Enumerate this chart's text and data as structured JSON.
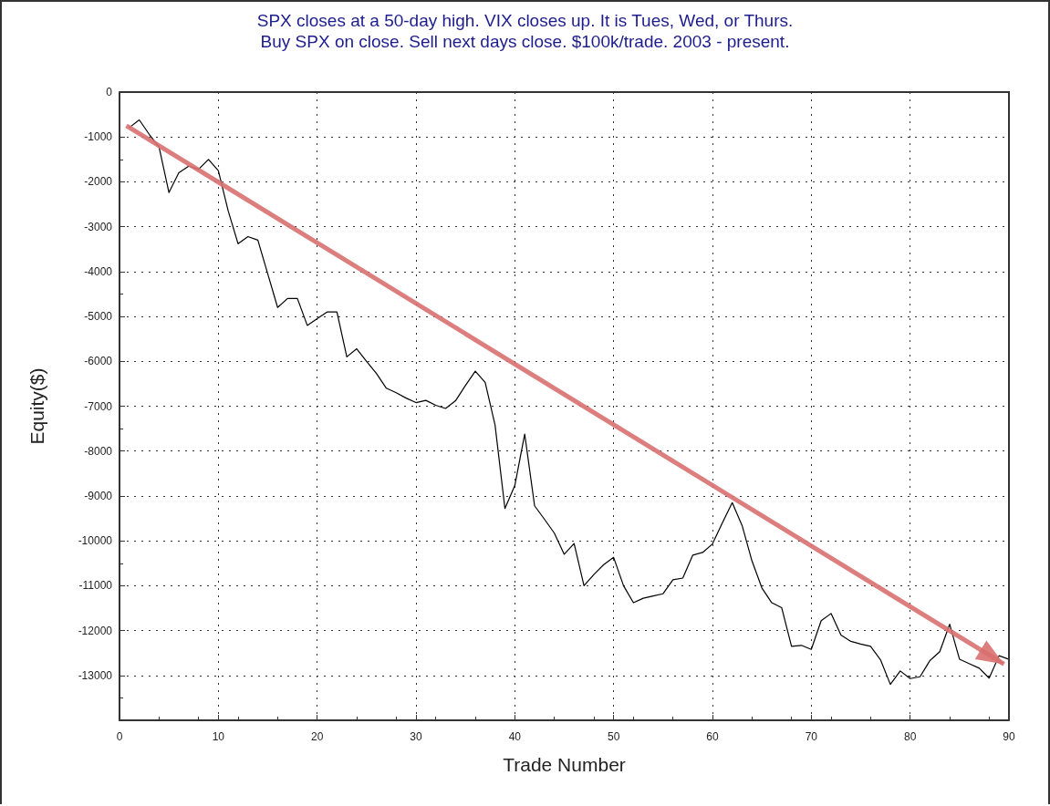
{
  "chart_data": {
    "type": "line",
    "title": "SPX closes at a 50-day high. VIX closes up. It is Tues, Wed, or Thurs.",
    "subtitle": "Buy SPX on close. Sell next days close. $100k/trade. 2003 - present.",
    "xlabel": "Trade Number",
    "ylabel": "Equity($)",
    "series": [
      {
        "color": "#000000",
        "x": [
          1,
          2,
          3,
          4,
          5,
          6,
          7,
          8,
          9,
          10,
          11,
          12,
          13,
          14,
          15,
          16,
          17,
          18,
          19,
          20,
          21,
          22,
          23,
          24,
          25,
          26,
          27,
          28,
          29,
          30,
          31,
          32,
          33,
          34,
          35,
          36,
          37,
          38,
          39,
          40,
          41,
          42,
          43,
          44,
          45,
          46,
          47,
          48,
          49,
          50,
          51,
          52,
          53,
          54,
          55,
          56,
          57,
          58,
          59,
          60,
          61,
          62,
          63,
          64,
          65,
          66,
          67,
          68,
          69,
          70,
          71,
          72,
          73,
          74,
          75,
          76,
          77,
          78,
          79,
          80,
          81,
          82,
          83,
          84,
          85,
          86,
          87,
          88,
          89,
          90
        ],
        "values": [
          -790,
          -620,
          -940,
          -1220,
          -2240,
          -1800,
          -1650,
          -1720,
          -1500,
          -1750,
          -2650,
          -3380,
          -3220,
          -3300,
          -4050,
          -4800,
          -4600,
          -4600,
          -5200,
          -5050,
          -4900,
          -4900,
          -5900,
          -5720,
          -6000,
          -6270,
          -6600,
          -6700,
          -6820,
          -6920,
          -6870,
          -6980,
          -7050,
          -6880,
          -6540,
          -6220,
          -6470,
          -7420,
          -9280,
          -8770,
          -7620,
          -9220,
          -9520,
          -9830,
          -10300,
          -10060,
          -11000,
          -10750,
          -10530,
          -10370,
          -11000,
          -11380,
          -11280,
          -11230,
          -11180,
          -10870,
          -10830,
          -10320,
          -10260,
          -10070,
          -9600,
          -9150,
          -9660,
          -10450,
          -11050,
          -11380,
          -11490,
          -12350,
          -12330,
          -12420,
          -11780,
          -11620,
          -12100,
          -12240,
          -12300,
          -12350,
          -12650,
          -13200,
          -12900,
          -13070,
          -13030,
          -12670,
          -12470,
          -11860,
          -12640,
          -12740,
          -12840,
          -13060,
          -12560,
          -12640
        ]
      },
      {
        "type": "line",
        "color": "#d97070",
        "x": [
          0.7,
          89.5
        ],
        "values": [
          -750,
          -12750
        ]
      }
    ],
    "xlim": [
      0,
      90
    ],
    "xticks": [
      0,
      10,
      20,
      30,
      40,
      50,
      60,
      70,
      80,
      90
    ],
    "ylim": [
      -14000,
      0
    ],
    "yticks": [
      0,
      -1000,
      -2000,
      -3000,
      -4000,
      -5000,
      -6000,
      -7000,
      -8000,
      -9000,
      -10000,
      -11000,
      -12000,
      -13000,
      {
        "value": -14000,
        "label": null
      }
    ],
    "grid": true,
    "marker": "none",
    "line_style": "solid"
  }
}
